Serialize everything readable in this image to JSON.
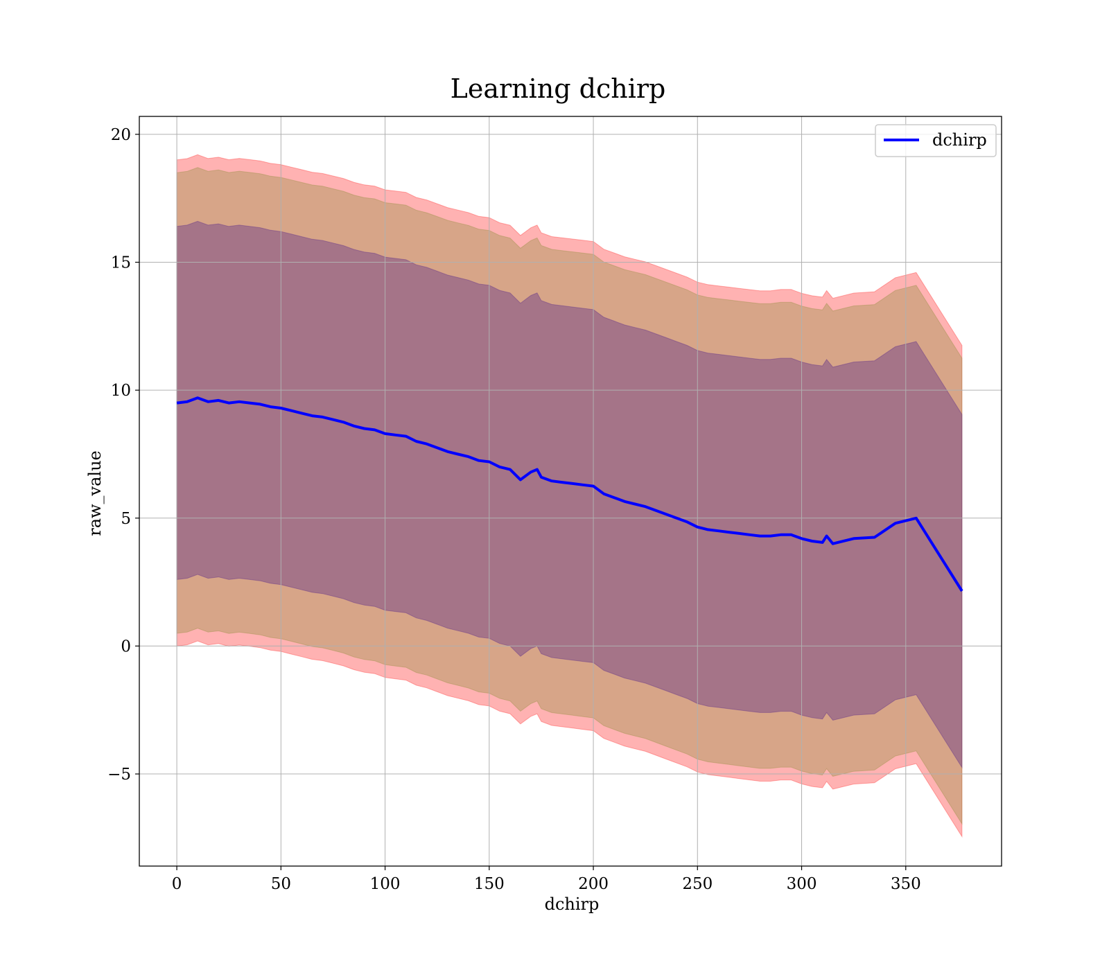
{
  "chart_data": {
    "type": "line",
    "title": "Learning dchirp",
    "xlabel": "dchirp",
    "ylabel": "raw_value",
    "xlim": [
      -18,
      396
    ],
    "ylim": [
      -8.6,
      20.7
    ],
    "xticks": [
      0,
      50,
      100,
      150,
      200,
      250,
      300,
      350
    ],
    "yticks": [
      -5,
      0,
      5,
      10,
      15,
      20
    ],
    "ytick_labels": [
      "−5",
      "0",
      "5",
      "10",
      "15",
      "20"
    ],
    "xtick_labels": [
      "0",
      "50",
      "100",
      "150",
      "200",
      "250",
      "300",
      "350"
    ],
    "grid": true,
    "legend": {
      "placement": "top-right",
      "entries": [
        "dchirp"
      ]
    },
    "colors": {
      "mean": "#0000ff",
      "band_outer": "#ff0000",
      "band_mid": "#8b8b3a",
      "band_inner": "#5a2a8a"
    },
    "series": [
      {
        "name": "dchirp",
        "x": [
          0,
          5,
          10,
          15,
          20,
          25,
          30,
          35,
          40,
          45,
          50,
          55,
          60,
          65,
          70,
          75,
          80,
          85,
          90,
          95,
          100,
          105,
          110,
          115,
          120,
          125,
          130,
          135,
          140,
          145,
          150,
          155,
          160,
          165,
          170,
          173,
          175,
          180,
          185,
          190,
          195,
          200,
          205,
          210,
          215,
          220,
          225,
          230,
          235,
          240,
          245,
          250,
          255,
          260,
          265,
          270,
          275,
          280,
          285,
          290,
          295,
          300,
          305,
          310,
          312,
          315,
          325,
          335,
          345,
          355,
          377
        ],
        "y": [
          9.5,
          9.55,
          9.7,
          9.55,
          9.6,
          9.5,
          9.55,
          9.5,
          9.45,
          9.35,
          9.3,
          9.2,
          9.1,
          9.0,
          8.95,
          8.85,
          8.75,
          8.6,
          8.5,
          8.45,
          8.3,
          8.25,
          8.2,
          8.0,
          7.9,
          7.75,
          7.6,
          7.5,
          7.4,
          7.25,
          7.2,
          7.0,
          6.9,
          6.5,
          6.8,
          6.9,
          6.6,
          6.45,
          6.4,
          6.35,
          6.3,
          6.25,
          5.95,
          5.8,
          5.65,
          5.55,
          5.45,
          5.3,
          5.15,
          5.0,
          4.85,
          4.65,
          4.55,
          4.5,
          4.45,
          4.4,
          4.35,
          4.3,
          4.3,
          4.35,
          4.35,
          4.2,
          4.1,
          4.05,
          4.3,
          4.0,
          4.2,
          4.25,
          4.8,
          5.0,
          2.15
        ]
      }
    ],
    "bands": [
      {
        "name": "outer",
        "half_width_start": 9.5,
        "half_width_end": 9.6
      },
      {
        "name": "mid",
        "half_width_start": 9.0,
        "half_width_end": 9.1
      },
      {
        "name": "inner",
        "half_width_start": 6.9,
        "half_width_end": 6.9
      }
    ]
  }
}
